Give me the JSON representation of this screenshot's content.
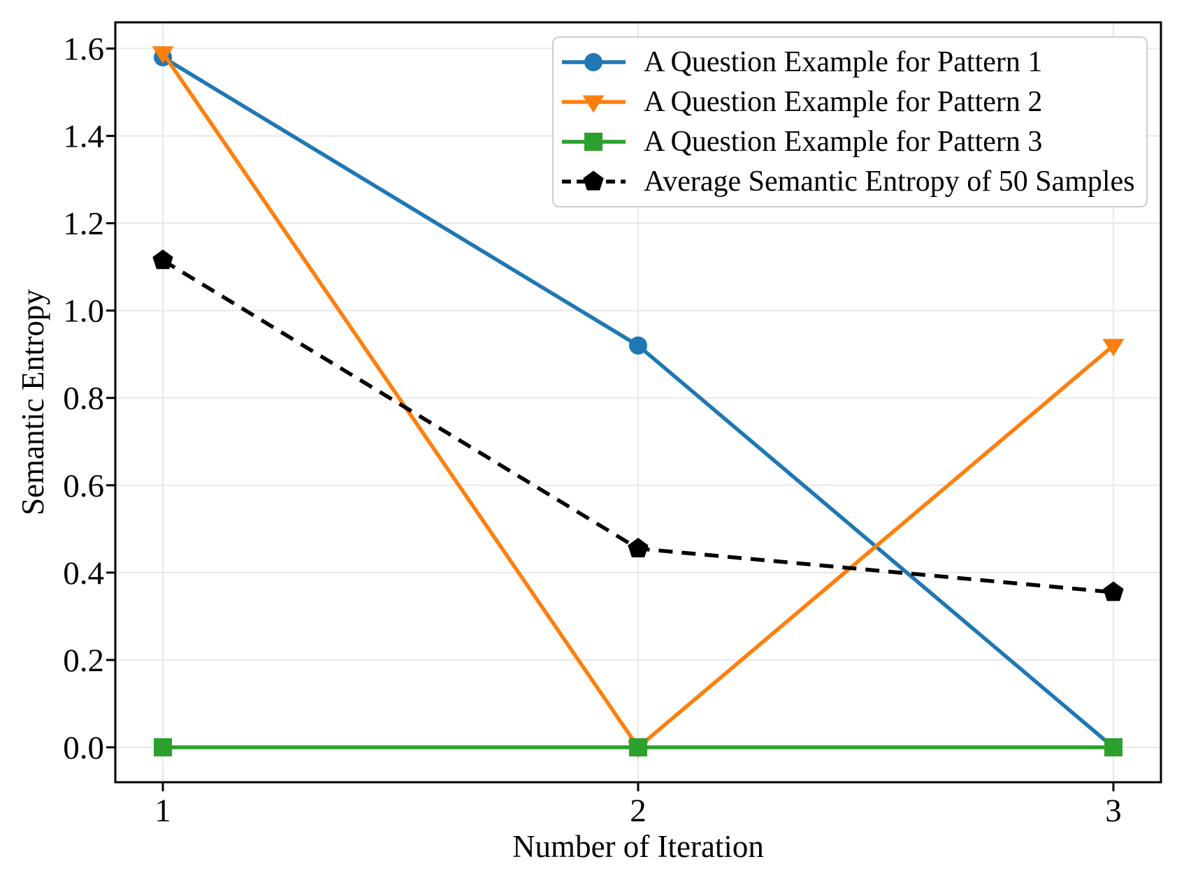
{
  "figure": {
    "background": "#ffffff"
  },
  "chart_data": {
    "type": "line",
    "title": "",
    "xlabel": "Number of Iteration",
    "ylabel": "Semantic Entropy",
    "x": [
      1,
      2,
      3
    ],
    "x_tick_labels": [
      "1",
      "2",
      "3"
    ],
    "y_tick_values": [
      0.0,
      0.2,
      0.4,
      0.6,
      0.8,
      1.0,
      1.2,
      1.4,
      1.6
    ],
    "y_tick_labels": [
      "0.0",
      "0.2",
      "0.4",
      "0.6",
      "0.8",
      "1.0",
      "1.2",
      "1.4",
      "1.6"
    ],
    "xlim": [
      0.9,
      3.1
    ],
    "ylim": [
      -0.08,
      1.66
    ],
    "grid": true,
    "legend_position": "upper right",
    "series": [
      {
        "name": "A Question Example for Pattern 1",
        "color": "#1f77b4",
        "marker": "circle",
        "linestyle": "solid",
        "values": [
          1.58,
          0.92,
          0.0
        ]
      },
      {
        "name": "A Question Example for Pattern 2",
        "color": "#ff7f0e",
        "marker": "triangle-down",
        "linestyle": "solid",
        "values": [
          1.59,
          0.0,
          0.92
        ]
      },
      {
        "name": "A Question Example for Pattern 3",
        "color": "#2ca02c",
        "marker": "square",
        "linestyle": "solid",
        "values": [
          0.0,
          0.0,
          0.0
        ]
      },
      {
        "name": "Average Semantic Entropy of 50 Samples",
        "color": "#000000",
        "marker": "pentagon",
        "linestyle": "dashed",
        "values": [
          1.115,
          0.455,
          0.355
        ]
      }
    ],
    "colors": {
      "grid": "#e8e8e8",
      "spine": "#000000",
      "tick_label": "#000000",
      "legend_border": "#cccccc",
      "background": "#ffffff"
    }
  }
}
